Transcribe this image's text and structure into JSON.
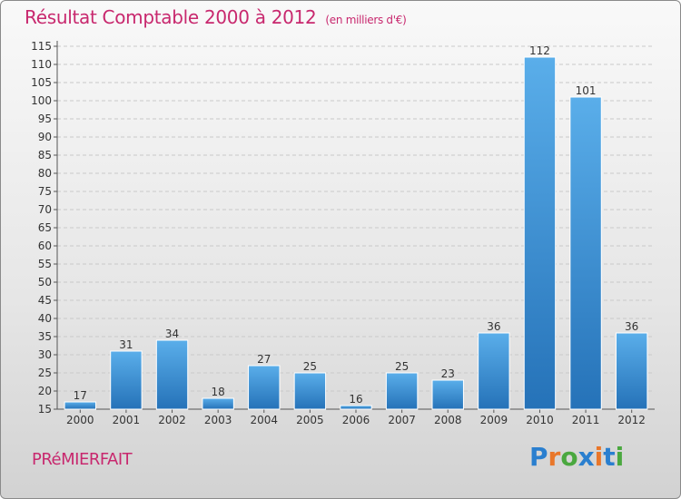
{
  "title": "Résultat Comptable 2000 à 2012",
  "subtitle": "(en milliers d'€)",
  "commune": "PRéMIERFAIT",
  "logo": {
    "letters": [
      "P",
      "r",
      "o",
      "x",
      "i",
      "t",
      "i"
    ],
    "colors": [
      "#2a7fcf",
      "#e9772a",
      "#4aa83f",
      "#2a7fcf",
      "#e9772a",
      "#2a7fcf",
      "#4aa83f"
    ]
  },
  "chart_data": {
    "type": "bar",
    "title": "Résultat Comptable 2000 à 2012",
    "subtitle": "(en milliers d'€)",
    "categories": [
      "2000",
      "2001",
      "2002",
      "2003",
      "2004",
      "2005",
      "2006",
      "2007",
      "2008",
      "2009",
      "2010",
      "2011",
      "2012"
    ],
    "values": [
      17,
      31,
      34,
      18,
      27,
      25,
      16,
      25,
      23,
      36,
      112,
      101,
      36
    ],
    "ylim": [
      15,
      115
    ],
    "yticks": [
      15,
      20,
      25,
      30,
      35,
      40,
      45,
      50,
      55,
      60,
      65,
      70,
      75,
      80,
      85,
      90,
      95,
      100,
      105,
      110,
      115
    ],
    "bar_color": "#3d95dc",
    "grid": true
  }
}
